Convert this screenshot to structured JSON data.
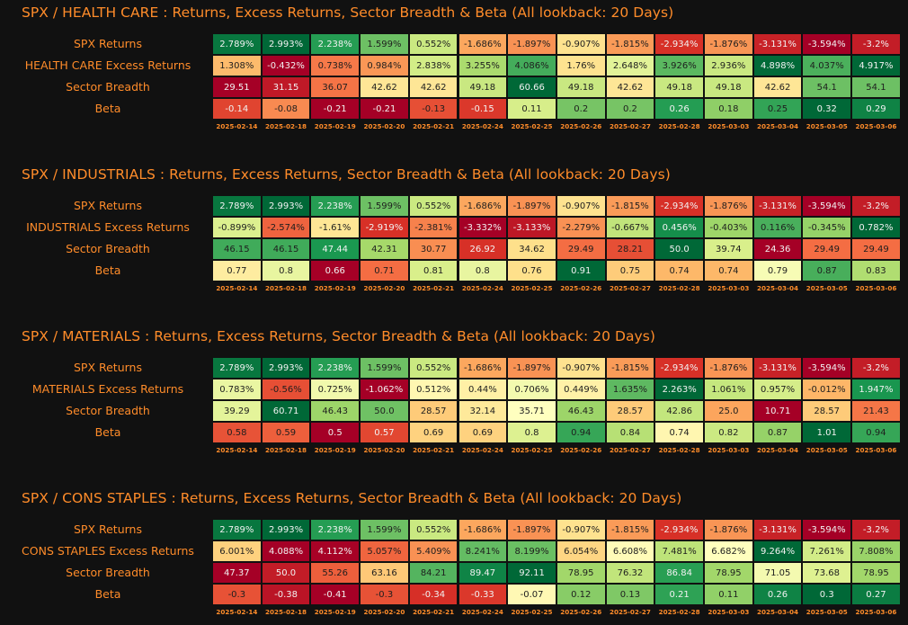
{
  "dates": [
    "2025-02-14",
    "2025-02-18",
    "2025-02-19",
    "2025-02-20",
    "2025-02-21",
    "2025-02-24",
    "2025-02-25",
    "2025-02-26",
    "2025-02-27",
    "2025-02-28",
    "2025-03-03",
    "2025-03-04",
    "2025-03-05",
    "2025-03-06"
  ],
  "spx_returns": [
    "2.789%",
    "2.993%",
    "2.238%",
    "1.599%",
    "0.552%",
    "-1.686%",
    "-1.897%",
    "-0.907%",
    "-1.815%",
    "-2.934%",
    "-1.876%",
    "-3.131%",
    "-3.594%",
    "-3.2%"
  ],
  "colors": {
    "accent": "#ff8c2a",
    "background": "#111111",
    "high": "#006837",
    "low": "#a50026"
  },
  "chart_data": [
    {
      "type": "heatmap",
      "title": "SPX / HEALTH CARE : Returns, Excess Returns, Sector Breadth & Beta (All lookback: 20 Days)",
      "rows": [
        {
          "label": "SPX Returns",
          "values": [
            "2.789%",
            "2.993%",
            "2.238%",
            "1.599%",
            "0.552%",
            "-1.686%",
            "-1.897%",
            "-0.907%",
            "-1.815%",
            "-2.934%",
            "-1.876%",
            "-3.131%",
            "-3.594%",
            "-3.2%"
          ]
        },
        {
          "label": "HEALTH CARE Excess Returns",
          "values": [
            "1.308%",
            "-0.432%",
            "0.738%",
            "0.984%",
            "2.838%",
            "3.255%",
            "4.086%",
            "1.76%",
            "2.648%",
            "3.926%",
            "2.936%",
            "4.898%",
            "4.037%",
            "4.917%"
          ]
        },
        {
          "label": "Sector Breadth",
          "values": [
            "29.51",
            "31.15",
            "36.07",
            "42.62",
            "42.62",
            "49.18",
            "60.66",
            "49.18",
            "42.62",
            "49.18",
            "49.18",
            "42.62",
            "54.1",
            "54.1"
          ]
        },
        {
          "label": "Beta",
          "values": [
            "-0.14",
            "-0.08",
            "-0.21",
            "-0.21",
            "-0.13",
            "-0.15",
            "0.11",
            "0.2",
            "0.2",
            "0.26",
            "0.18",
            "0.25",
            "0.32",
            "0.29"
          ]
        }
      ]
    },
    {
      "type": "heatmap",
      "title": "SPX / INDUSTRIALS : Returns, Excess Returns, Sector Breadth & Beta (All lookback: 20 Days)",
      "rows": [
        {
          "label": "SPX Returns",
          "values": [
            "2.789%",
            "2.993%",
            "2.238%",
            "1.599%",
            "0.552%",
            "-1.686%",
            "-1.897%",
            "-0.907%",
            "-1.815%",
            "-2.934%",
            "-1.876%",
            "-3.131%",
            "-3.594%",
            "-3.2%"
          ]
        },
        {
          "label": "INDUSTRIALS Excess Returns",
          "values": [
            "-0.899%",
            "-2.574%",
            "-1.61%",
            "-2.919%",
            "-2.381%",
            "-3.332%",
            "-3.133%",
            "-2.279%",
            "-0.667%",
            "0.456%",
            "-0.403%",
            "0.116%",
            "-0.345%",
            "0.782%"
          ]
        },
        {
          "label": "Sector Breadth",
          "values": [
            "46.15",
            "46.15",
            "47.44",
            "42.31",
            "30.77",
            "26.92",
            "34.62",
            "29.49",
            "28.21",
            "50.0",
            "39.74",
            "24.36",
            "29.49",
            "29.49"
          ]
        },
        {
          "label": "Beta",
          "values": [
            "0.77",
            "0.8",
            "0.66",
            "0.71",
            "0.81",
            "0.8",
            "0.76",
            "0.91",
            "0.75",
            "0.74",
            "0.74",
            "0.79",
            "0.87",
            "0.83"
          ]
        }
      ]
    },
    {
      "type": "heatmap",
      "title": "SPX / MATERIALS : Returns, Excess Returns, Sector Breadth & Beta (All lookback: 20 Days)",
      "rows": [
        {
          "label": "SPX Returns",
          "values": [
            "2.789%",
            "2.993%",
            "2.238%",
            "1.599%",
            "0.552%",
            "-1.686%",
            "-1.897%",
            "-0.907%",
            "-1.815%",
            "-2.934%",
            "-1.876%",
            "-3.131%",
            "-3.594%",
            "-3.2%"
          ]
        },
        {
          "label": "MATERIALS Excess Returns",
          "values": [
            "0.783%",
            "-0.56%",
            "0.725%",
            "-1.062%",
            "0.512%",
            "0.44%",
            "0.706%",
            "0.449%",
            "1.635%",
            "2.263%",
            "1.061%",
            "0.957%",
            "-0.012%",
            "1.947%"
          ]
        },
        {
          "label": "Sector Breadth",
          "values": [
            "39.29",
            "60.71",
            "46.43",
            "50.0",
            "28.57",
            "32.14",
            "35.71",
            "46.43",
            "28.57",
            "42.86",
            "25.0",
            "10.71",
            "28.57",
            "21.43"
          ]
        },
        {
          "label": "Beta",
          "values": [
            "0.58",
            "0.59",
            "0.5",
            "0.57",
            "0.69",
            "0.69",
            "0.8",
            "0.94",
            "0.84",
            "0.74",
            "0.82",
            "0.87",
            "1.01",
            "0.94"
          ]
        }
      ]
    },
    {
      "type": "heatmap",
      "title": "SPX / CONS STAPLES : Returns, Excess Returns, Sector Breadth & Beta (All lookback: 20 Days)",
      "rows": [
        {
          "label": "SPX Returns",
          "values": [
            "2.789%",
            "2.993%",
            "2.238%",
            "1.599%",
            "0.552%",
            "-1.686%",
            "-1.897%",
            "-0.907%",
            "-1.815%",
            "-2.934%",
            "-1.876%",
            "-3.131%",
            "-3.594%",
            "-3.2%"
          ]
        },
        {
          "label": "CONS STAPLES Excess Returns",
          "values": [
            "6.001%",
            "4.088%",
            "4.112%",
            "5.057%",
            "5.409%",
            "8.241%",
            "8.199%",
            "6.054%",
            "6.608%",
            "7.481%",
            "6.682%",
            "9.264%",
            "7.261%",
            "7.808%"
          ]
        },
        {
          "label": "Sector Breadth",
          "values": [
            "47.37",
            "50.0",
            "55.26",
            "63.16",
            "84.21",
            "89.47",
            "92.11",
            "78.95",
            "76.32",
            "86.84",
            "78.95",
            "71.05",
            "73.68",
            "78.95"
          ]
        },
        {
          "label": "Beta",
          "values": [
            "-0.3",
            "-0.38",
            "-0.41",
            "-0.3",
            "-0.34",
            "-0.33",
            "-0.07",
            "0.12",
            "0.13",
            "0.21",
            "0.11",
            "0.26",
            "0.3",
            "0.27"
          ]
        }
      ]
    }
  ]
}
